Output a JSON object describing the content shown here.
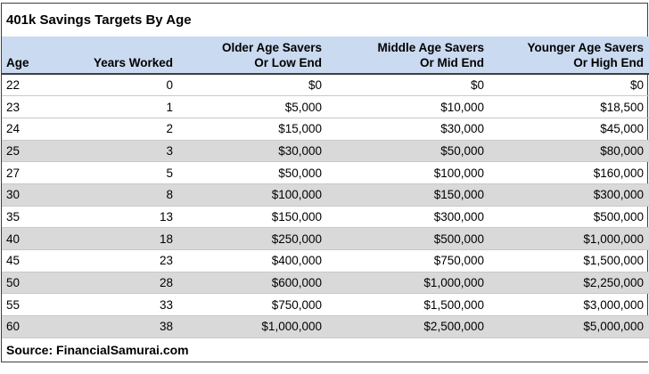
{
  "title": "401k Savings Targets By Age",
  "source": "Source: FinancialSamurai.com",
  "colors": {
    "header_bg": "#cadaf0",
    "stripe_bg": "#d9d9d9",
    "outer_border": "#3f3f3f",
    "gridline": "#c8c8c8",
    "text": "#000000"
  },
  "table": {
    "columns": [
      {
        "line1": "",
        "line2": "Age"
      },
      {
        "line1": "",
        "line2": "Years Worked"
      },
      {
        "line1": "Older Age Savers",
        "line2": "Or Low End"
      },
      {
        "line1": "Middle Age Savers",
        "line2": "Or Mid End"
      },
      {
        "line1": "Younger Age Savers",
        "line2": "Or High End"
      }
    ],
    "rows": [
      {
        "age": "22",
        "years_worked": "0",
        "low_end": "$0",
        "mid_end": "$0",
        "high_end": "$0",
        "shaded": false
      },
      {
        "age": "23",
        "years_worked": "1",
        "low_end": "$5,000",
        "mid_end": "$10,000",
        "high_end": "$18,500",
        "shaded": false
      },
      {
        "age": "24",
        "years_worked": "2",
        "low_end": "$15,000",
        "mid_end": "$30,000",
        "high_end": "$45,000",
        "shaded": false
      },
      {
        "age": "25",
        "years_worked": "3",
        "low_end": "$30,000",
        "mid_end": "$50,000",
        "high_end": "$80,000",
        "shaded": true
      },
      {
        "age": "27",
        "years_worked": "5",
        "low_end": "$50,000",
        "mid_end": "$100,000",
        "high_end": "$160,000",
        "shaded": false
      },
      {
        "age": "30",
        "years_worked": "8",
        "low_end": "$100,000",
        "mid_end": "$150,000",
        "high_end": "$300,000",
        "shaded": true
      },
      {
        "age": "35",
        "years_worked": "13",
        "low_end": "$150,000",
        "mid_end": "$300,000",
        "high_end": "$500,000",
        "shaded": false
      },
      {
        "age": "40",
        "years_worked": "18",
        "low_end": "$250,000",
        "mid_end": "$500,000",
        "high_end": "$1,000,000",
        "shaded": true
      },
      {
        "age": "45",
        "years_worked": "23",
        "low_end": "$400,000",
        "mid_end": "$750,000",
        "high_end": "$1,500,000",
        "shaded": false
      },
      {
        "age": "50",
        "years_worked": "28",
        "low_end": "$600,000",
        "mid_end": "$1,000,000",
        "high_end": "$2,250,000",
        "shaded": true
      },
      {
        "age": "55",
        "years_worked": "33",
        "low_end": "$750,000",
        "mid_end": "$1,500,000",
        "high_end": "$3,000,000",
        "shaded": false
      },
      {
        "age": "60",
        "years_worked": "38",
        "low_end": "$1,000,000",
        "mid_end": "$2,500,000",
        "high_end": "$5,000,000",
        "shaded": true
      }
    ]
  },
  "chart_data": {
    "type": "table",
    "title": "401k Savings Targets By Age",
    "columns": [
      "Age",
      "Years Worked",
      "Older Age Savers Or Low End",
      "Middle Age Savers Or Mid End",
      "Younger Age Savers Or High End"
    ],
    "rows": [
      [
        22,
        0,
        0,
        0,
        0
      ],
      [
        23,
        1,
        5000,
        10000,
        18500
      ],
      [
        24,
        2,
        15000,
        30000,
        45000
      ],
      [
        25,
        3,
        30000,
        50000,
        80000
      ],
      [
        27,
        5,
        50000,
        100000,
        160000
      ],
      [
        30,
        8,
        100000,
        150000,
        300000
      ],
      [
        35,
        13,
        150000,
        300000,
        500000
      ],
      [
        40,
        18,
        250000,
        500000,
        1000000
      ],
      [
        45,
        23,
        400000,
        750000,
        1500000
      ],
      [
        50,
        28,
        600000,
        1000000,
        2250000
      ],
      [
        55,
        33,
        750000,
        1500000,
        3000000
      ],
      [
        60,
        38,
        1000000,
        2500000,
        5000000
      ]
    ],
    "source": "Source: FinancialSamurai.com",
    "currency_columns": [
      2,
      3,
      4
    ],
    "shaded_ages": [
      25,
      30,
      40,
      50,
      60
    ]
  }
}
